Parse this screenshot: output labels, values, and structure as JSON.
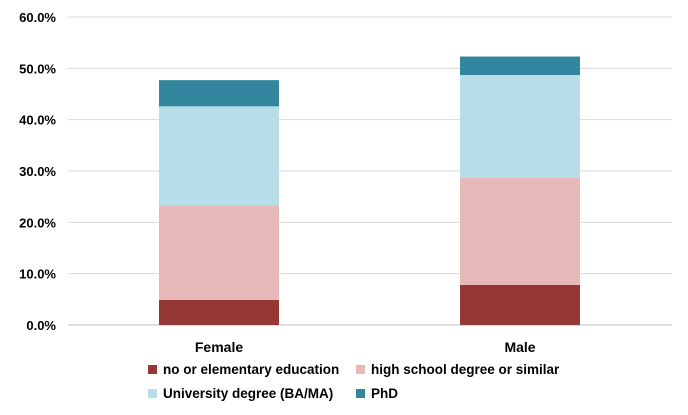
{
  "chart_data": {
    "type": "bar",
    "stacked": true,
    "title": "",
    "xlabel": "",
    "ylabel": "",
    "categories": [
      "Female",
      "Male"
    ],
    "ylim": [
      0,
      60
    ],
    "yticks": [
      0,
      10,
      20,
      30,
      40,
      50,
      60
    ],
    "ytick_labels": [
      "0.0%",
      "10.0%",
      "20.0%",
      "30.0%",
      "40.0%",
      "50.0%",
      "60.0%"
    ],
    "grid": true,
    "legend_position": "bottom",
    "series": [
      {
        "name": "no or elementary education",
        "color": "#953735",
        "values": [
          4.9,
          7.8
        ]
      },
      {
        "name": "high school degree or similar",
        "color": "#e6b9b8",
        "values": [
          18.4,
          20.9
        ]
      },
      {
        "name": "University degree (BA/MA)",
        "color": "#b7dde8",
        "values": [
          19.3,
          20.0
        ]
      },
      {
        "name": "PhD",
        "color": "#31859c",
        "values": [
          5.1,
          3.6
        ]
      }
    ]
  }
}
